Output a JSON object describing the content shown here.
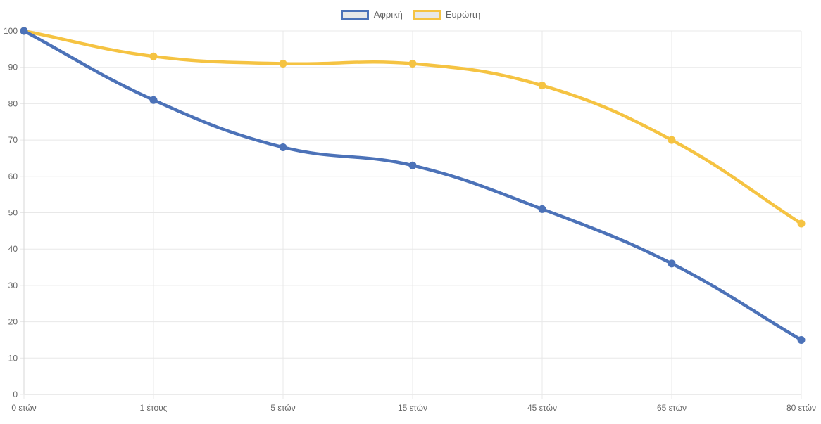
{
  "chart_data": {
    "type": "line",
    "categories": [
      "0 ετών",
      "1 έτους",
      "5 ετών",
      "15 ετών",
      "45 ετών",
      "65 ετών",
      "80 ετών"
    ],
    "series": [
      {
        "name": "Αφρική",
        "color": "#4c72b8",
        "values": [
          100,
          81,
          68,
          63,
          51,
          36,
          15
        ]
      },
      {
        "name": "Ευρώπη",
        "color": "#f5c342",
        "values": [
          100,
          93,
          91,
          91,
          85,
          70,
          47
        ]
      }
    ],
    "yticks": [
      0,
      10,
      20,
      30,
      40,
      50,
      60,
      70,
      80,
      90,
      100
    ],
    "ylim": [
      0,
      100
    ],
    "grid": true,
    "legend_position": "top",
    "title": "",
    "xlabel": "",
    "ylabel": ""
  },
  "colors": {
    "background": "#ffffff",
    "gridline": "#e8e8e8",
    "axis_line": "#d7d7d7",
    "tick_label": "#666666",
    "legend_text": "#666666",
    "legend_swatch_fill": "#e8e8e8"
  }
}
